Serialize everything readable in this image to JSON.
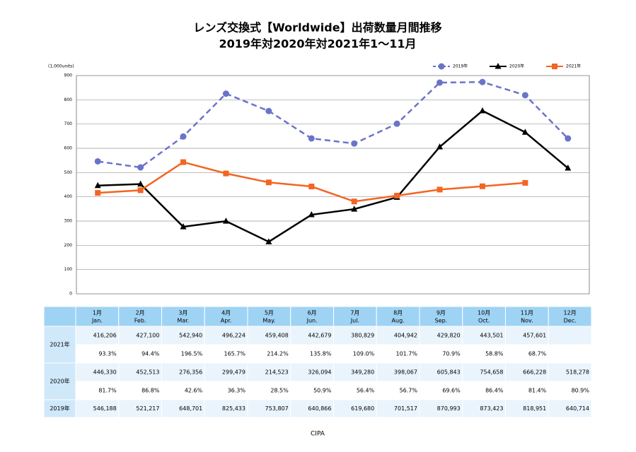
{
  "chart_data": {
    "type": "line",
    "title": "レンズ交換式【Worldwide】出荷数量月間推移",
    "subtitle": "2019年対2020年対2021年1～11月",
    "y_label": "(1,000units)",
    "categories": [
      "1月",
      "2月",
      "3月",
      "4月",
      "5月",
      "6月",
      "7月",
      "8月",
      "9月",
      "10月",
      "11月",
      "12月"
    ],
    "ylim": [
      0,
      900
    ],
    "yticks": [
      0,
      100,
      200,
      300,
      400,
      500,
      600,
      700,
      800,
      900
    ],
    "grid": true,
    "legend": "top-right",
    "series": [
      {
        "name": "2019年",
        "color": "#6b73c9",
        "line_style": "dashed",
        "marker": "circle",
        "values": [
          546.188,
          521.217,
          648.701,
          825.433,
          753.807,
          640.866,
          619.68,
          701.517,
          870.993,
          873.423,
          818.951,
          640.714
        ],
        "value_labels": [
          "546,188",
          "521,217",
          "648,701",
          "825,433",
          "753,807",
          "640,866",
          "619,680",
          "701,517",
          "870,993",
          "873,423",
          "818,951",
          "640,714"
        ]
      },
      {
        "name": "2020年",
        "color": "#000000",
        "line_style": "solid",
        "marker": "triangle",
        "values": [
          446.33,
          452.513,
          276.356,
          299.479,
          214.523,
          326.094,
          349.28,
          398.067,
          605.843,
          754.658,
          666.228,
          518.278
        ],
        "value_labels": [
          "446,330",
          "452,513",
          "276,356",
          "299,479",
          "214,523",
          "326,094",
          "349,280",
          "398,067",
          "605,843",
          "754,658",
          "666,228",
          "518,278"
        ]
      },
      {
        "name": "2021年",
        "color": "#f26522",
        "line_style": "solid",
        "marker": "square",
        "values": [
          416.206,
          427.1,
          542.94,
          496.224,
          459.408,
          442.679,
          380.829,
          404.942,
          429.82,
          443.501,
          457.601,
          null
        ],
        "value_labels": [
          "416,206",
          "427,100",
          "542,940",
          "496,224",
          "459,408",
          "442,679",
          "380,829",
          "404,942",
          "429,820",
          "443,501",
          "457,601",
          null
        ]
      }
    ]
  },
  "table": {
    "header_en": [
      "Jan.",
      "Feb.",
      "Mar.",
      "Apr.",
      "May.",
      "Jun.",
      "Jul.",
      "Aug.",
      "Sep.",
      "Oct.",
      "Nov.",
      "Dec."
    ],
    "ratio_2021": [
      "93.3%",
      "94.4%",
      "196.5%",
      "165.7%",
      "214.2%",
      "135.8%",
      "109.0%",
      "101.7%",
      "70.9%",
      "58.8%",
      "68.7%",
      null
    ],
    "ratio_2020": [
      "81.7%",
      "86.8%",
      "42.6%",
      "36.3%",
      "28.5%",
      "50.9%",
      "56.4%",
      "56.7%",
      "69.6%",
      "86.4%",
      "81.4%",
      "80.9%"
    ]
  },
  "footer": "CIPA"
}
